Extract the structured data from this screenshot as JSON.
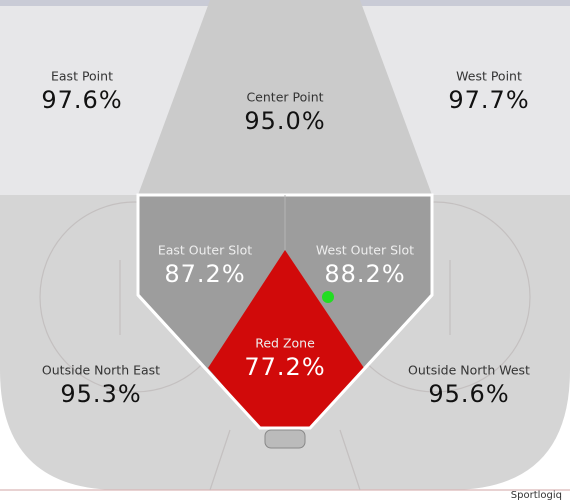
{
  "zones": [
    {
      "label": "East Point",
      "value": "97.6%"
    },
    {
      "label": "Center Point",
      "value": "95.0%"
    },
    {
      "label": "West Point",
      "value": "97.7%"
    },
    {
      "label": "East Outer Slot",
      "value": "87.2%"
    },
    {
      "label": "West Outer Slot",
      "value": "88.2%"
    },
    {
      "label": "Red Zone",
      "value": "77.2%"
    },
    {
      "label": "Outside North East",
      "value": "95.3%"
    },
    {
      "label": "Outside North West",
      "value": "95.6%"
    }
  ],
  "credit": "Sportlogiq"
}
